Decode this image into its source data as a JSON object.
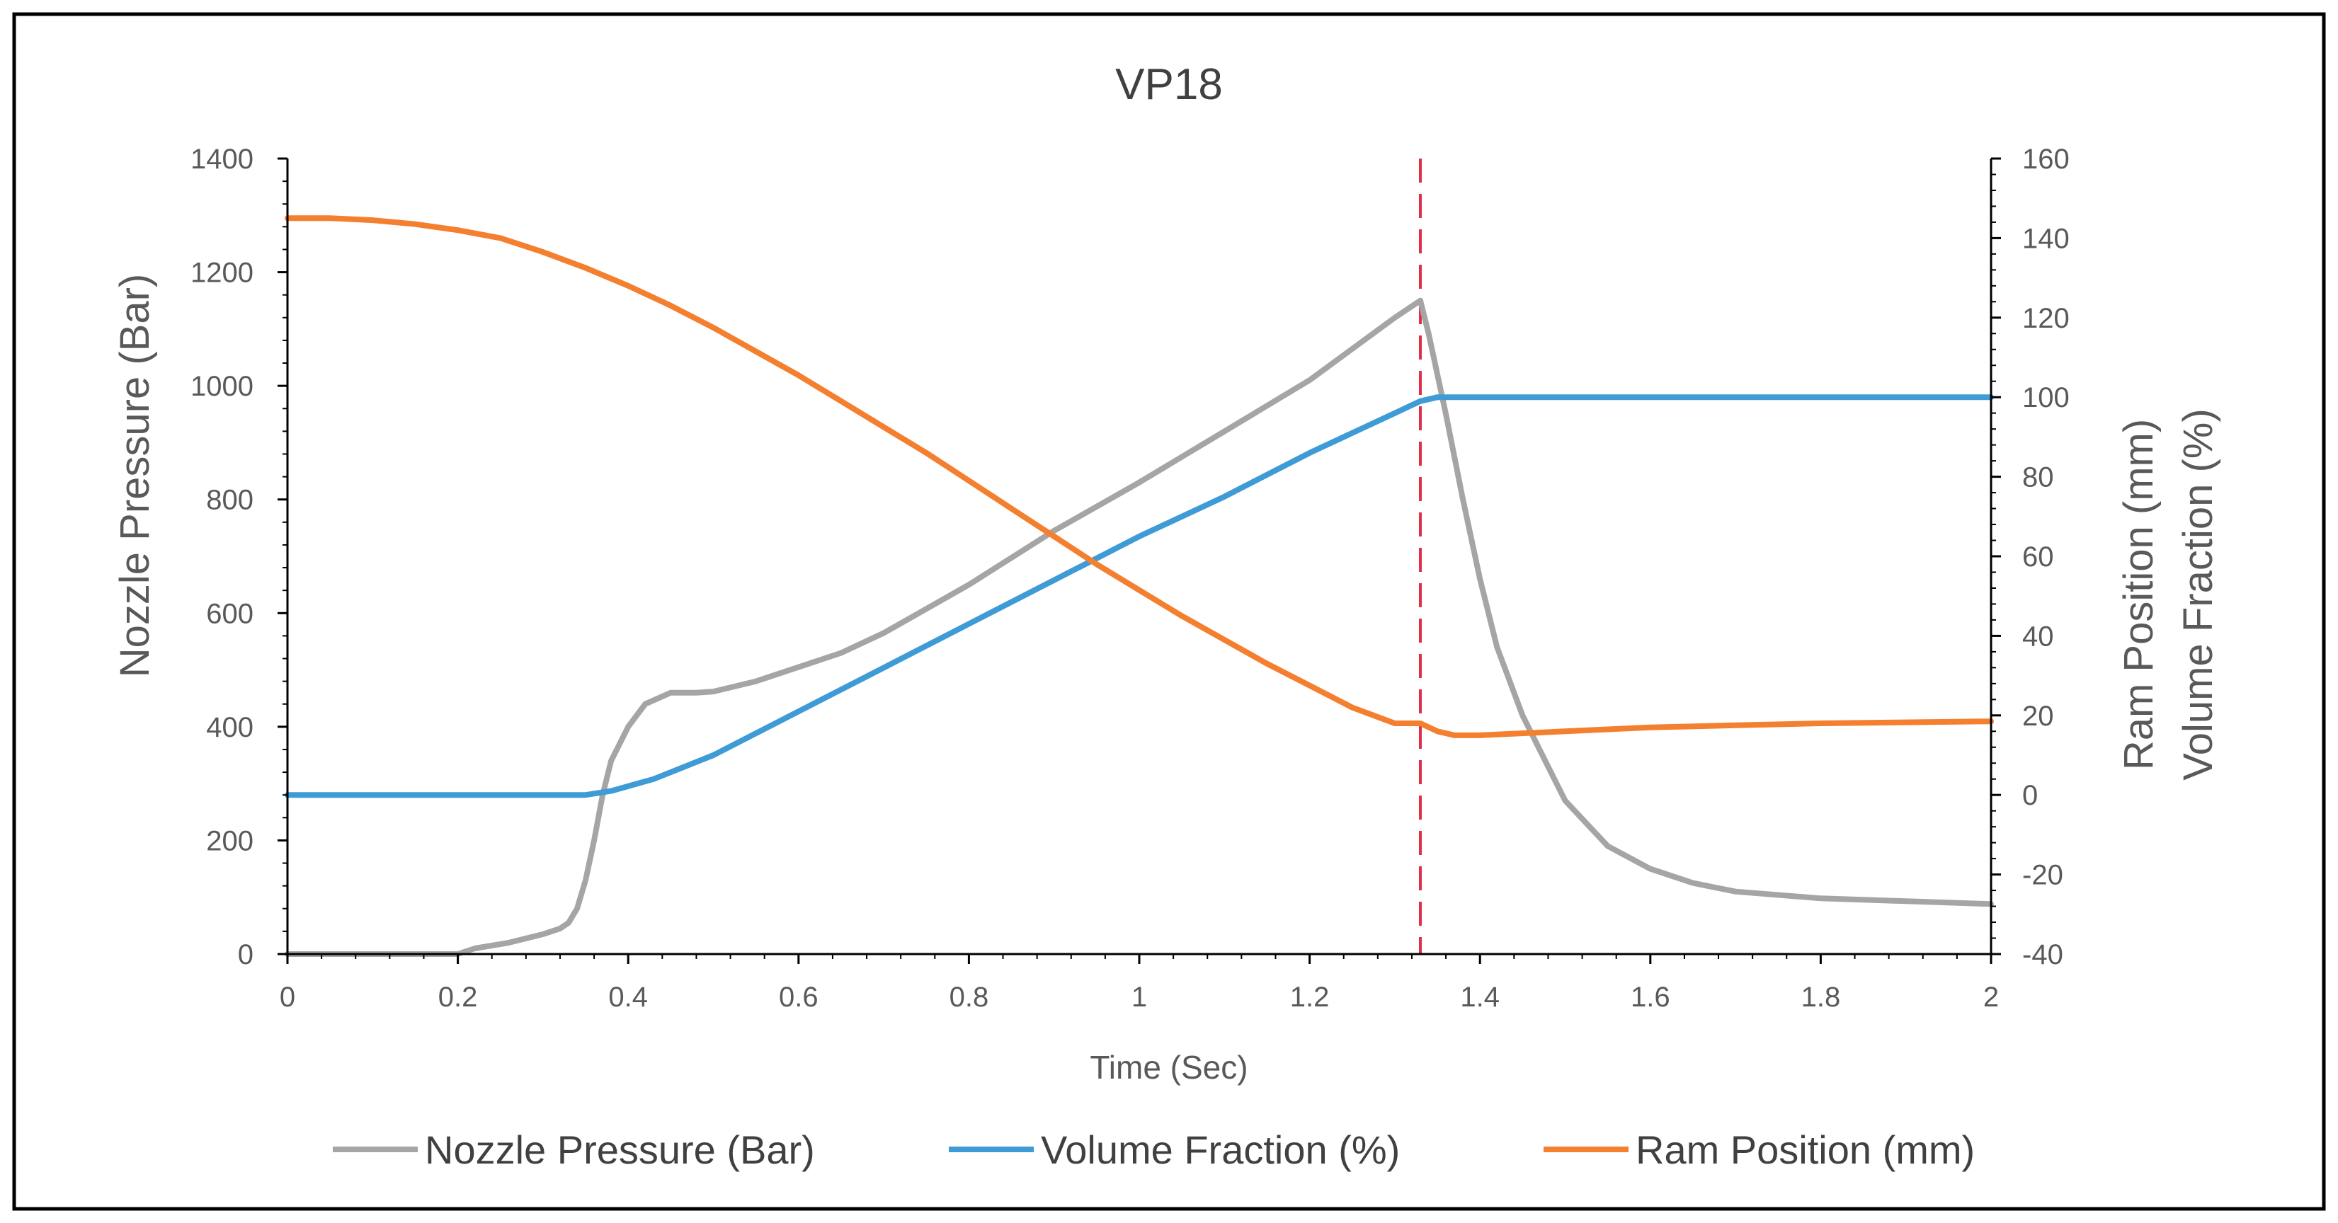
{
  "colors": {
    "nozzle_pressure": "#a5a5a5",
    "volume_fraction": "#3e9bd5",
    "ram_position": "#f47f2f",
    "marker_line": "#e0314b",
    "axis": "#000000",
    "text": "#595959"
  },
  "chart_data": {
    "type": "line",
    "title": "VP18",
    "xlabel": "Time (Sec)",
    "ylabel": "Nozzle Pressure (Bar)",
    "y2label_line1": "Ram Position (mm)",
    "y2label_line2": "Volume Fraction (%)",
    "xlim": [
      0,
      2
    ],
    "ylim": [
      0,
      1400
    ],
    "y2lim": [
      -40,
      160
    ],
    "x_ticks": [
      "0",
      "0.2",
      "0.4",
      "0.6",
      "0.8",
      "1",
      "1.2",
      "1.4",
      "1.6",
      "1.8",
      "2"
    ],
    "y_ticks": [
      "0",
      "200",
      "400",
      "600",
      "800",
      "1000",
      "1200",
      "1400"
    ],
    "y2_ticks": [
      "-40",
      "-20",
      "0",
      "20",
      "40",
      "60",
      "80",
      "100",
      "120",
      "140",
      "160"
    ],
    "grid": false,
    "legend_position": "bottom",
    "vertical_marker_x": 1.33,
    "series": [
      {
        "name": "Nozzle Pressure (Bar)",
        "axis": "left",
        "points": [
          [
            0,
            0
          ],
          [
            0.1,
            0
          ],
          [
            0.2,
            0
          ],
          [
            0.22,
            10
          ],
          [
            0.26,
            20
          ],
          [
            0.3,
            35
          ],
          [
            0.32,
            45
          ],
          [
            0.33,
            55
          ],
          [
            0.34,
            80
          ],
          [
            0.35,
            130
          ],
          [
            0.36,
            200
          ],
          [
            0.37,
            280
          ],
          [
            0.38,
            340
          ],
          [
            0.4,
            400
          ],
          [
            0.42,
            440
          ],
          [
            0.45,
            460
          ],
          [
            0.48,
            460
          ],
          [
            0.5,
            462
          ],
          [
            0.55,
            480
          ],
          [
            0.6,
            505
          ],
          [
            0.65,
            530
          ],
          [
            0.7,
            565
          ],
          [
            0.8,
            650
          ],
          [
            0.9,
            745
          ],
          [
            1.0,
            830
          ],
          [
            1.1,
            920
          ],
          [
            1.2,
            1010
          ],
          [
            1.3,
            1120
          ],
          [
            1.32,
            1140
          ],
          [
            1.33,
            1150
          ],
          [
            1.34,
            1090
          ],
          [
            1.36,
            950
          ],
          [
            1.38,
            800
          ],
          [
            1.4,
            660
          ],
          [
            1.42,
            540
          ],
          [
            1.45,
            420
          ],
          [
            1.48,
            330
          ],
          [
            1.5,
            270
          ],
          [
            1.55,
            190
          ],
          [
            1.6,
            150
          ],
          [
            1.65,
            125
          ],
          [
            1.7,
            110
          ],
          [
            1.8,
            98
          ],
          [
            1.9,
            93
          ],
          [
            2.0,
            88
          ]
        ]
      },
      {
        "name": "Volume Fraction (%)",
        "axis": "right",
        "points": [
          [
            0,
            0
          ],
          [
            0.35,
            0
          ],
          [
            0.38,
            1
          ],
          [
            0.43,
            4
          ],
          [
            0.5,
            10
          ],
          [
            0.6,
            21
          ],
          [
            0.7,
            32
          ],
          [
            0.8,
            43
          ],
          [
            0.9,
            54
          ],
          [
            1.0,
            65
          ],
          [
            1.1,
            75
          ],
          [
            1.2,
            86
          ],
          [
            1.3,
            96
          ],
          [
            1.33,
            99
          ],
          [
            1.35,
            100
          ],
          [
            1.5,
            100
          ],
          [
            1.7,
            100
          ],
          [
            2.0,
            100
          ]
        ]
      },
      {
        "name": "Ram Position (mm)",
        "axis": "right",
        "points": [
          [
            0,
            145
          ],
          [
            0.05,
            145
          ],
          [
            0.1,
            144.5
          ],
          [
            0.15,
            143.5
          ],
          [
            0.2,
            142
          ],
          [
            0.25,
            140
          ],
          [
            0.3,
            136.5
          ],
          [
            0.35,
            132.5
          ],
          [
            0.4,
            128
          ],
          [
            0.45,
            123
          ],
          [
            0.5,
            117.5
          ],
          [
            0.55,
            111.5
          ],
          [
            0.6,
            105.5
          ],
          [
            0.65,
            99
          ],
          [
            0.7,
            92.5
          ],
          [
            0.75,
            86
          ],
          [
            0.8,
            79
          ],
          [
            0.85,
            72
          ],
          [
            0.9,
            65
          ],
          [
            0.95,
            58
          ],
          [
            1.0,
            51.5
          ],
          [
            1.05,
            45
          ],
          [
            1.1,
            39
          ],
          [
            1.15,
            33
          ],
          [
            1.2,
            27.5
          ],
          [
            1.25,
            22
          ],
          [
            1.3,
            18
          ],
          [
            1.33,
            18
          ],
          [
            1.35,
            16
          ],
          [
            1.37,
            15
          ],
          [
            1.4,
            15
          ],
          [
            1.5,
            16
          ],
          [
            1.6,
            17
          ],
          [
            1.7,
            17.5
          ],
          [
            1.8,
            18
          ],
          [
            2.0,
            18.5
          ]
        ]
      }
    ]
  }
}
